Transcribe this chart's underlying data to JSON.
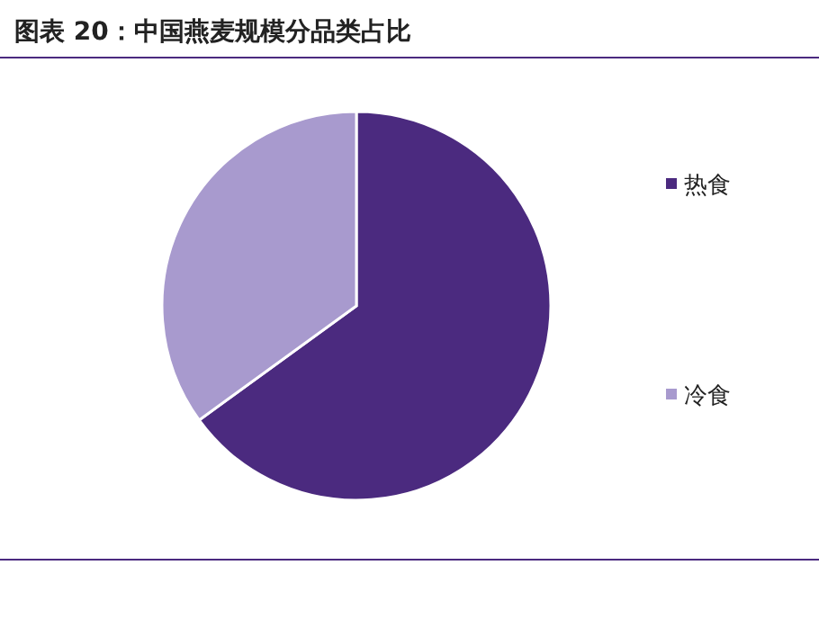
{
  "chart_data": {
    "type": "pie",
    "title": "图表 20：中国燕麦规模分品类占比",
    "categories": [
      "热食",
      "冷食"
    ],
    "values": [
      65,
      35
    ],
    "colors": [
      "#4b2a7f",
      "#a89ace"
    ],
    "legend": "right"
  }
}
